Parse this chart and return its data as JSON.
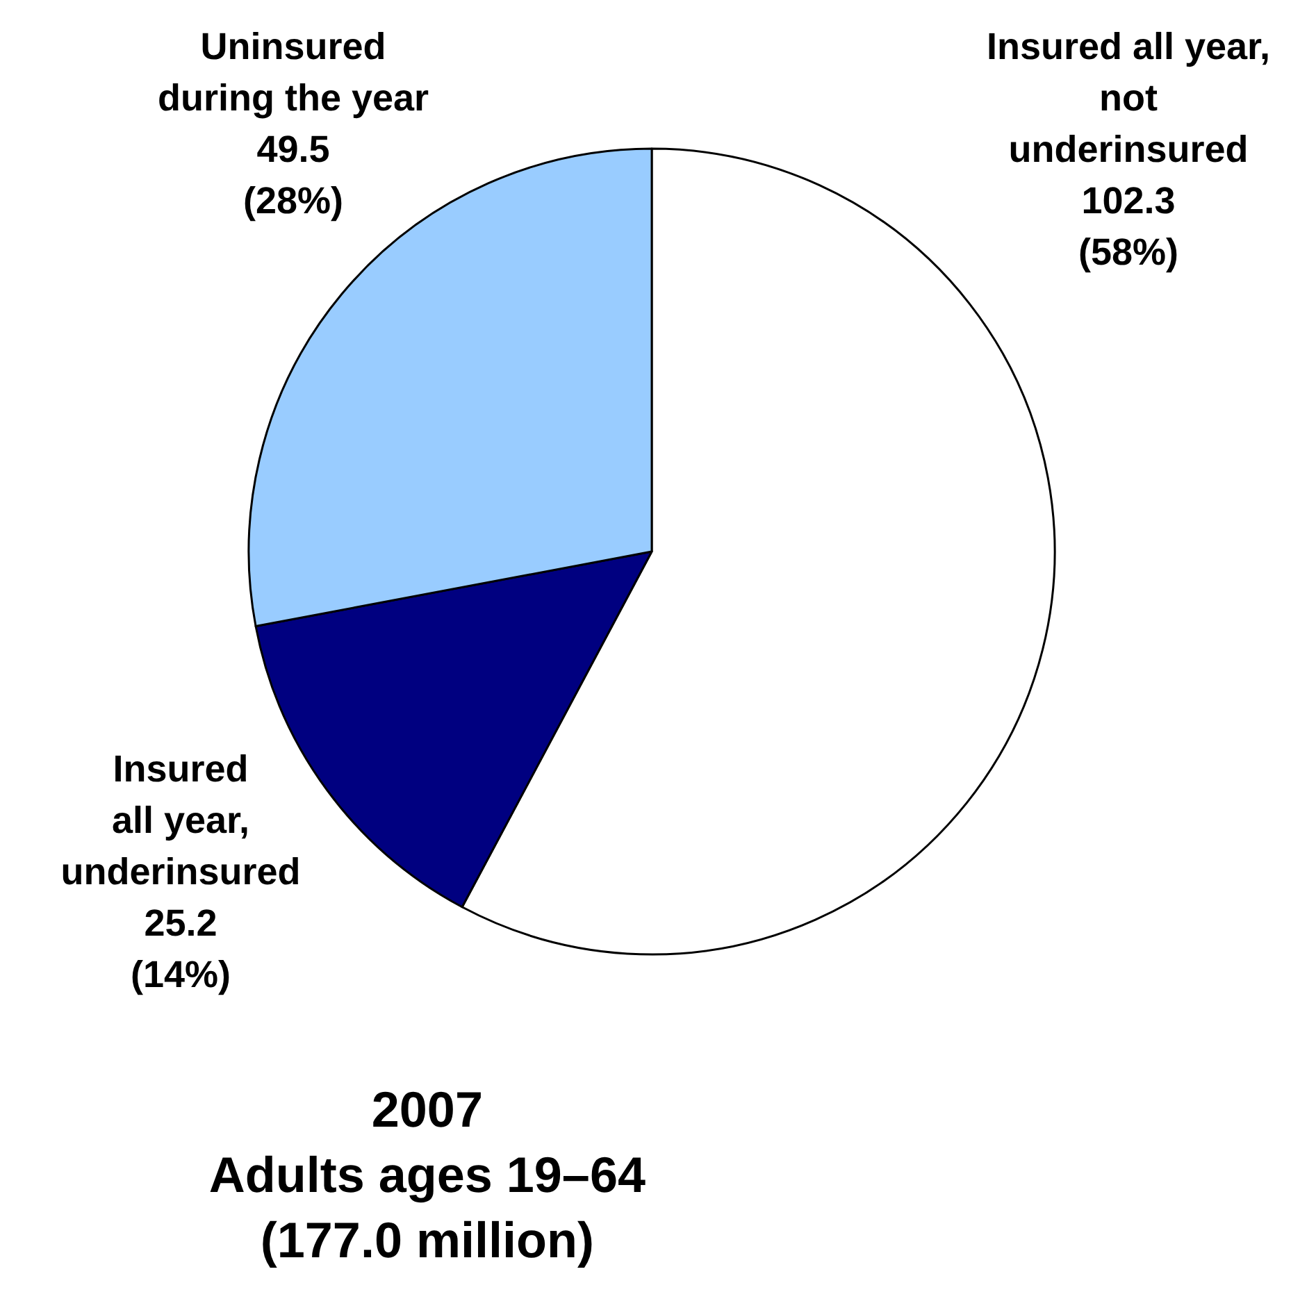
{
  "chart_data": {
    "type": "pie",
    "title": "2007",
    "subtitle": "Adults ages 19–64\n(177.0 million)",
    "categories": [
      "Insured all year,\nnot\nunderinsured",
      "Insured\nall year,\nunderinsured",
      "Uninsured\nduring the year"
    ],
    "values": [
      102.3,
      25.2,
      49.5
    ],
    "value_labels": [
      "102.3\n(58%)",
      "25.2\n(14%)",
      "49.5\n(28%)"
    ],
    "colors": [
      "#ffffff",
      "#000080",
      "#99ccff"
    ],
    "legend": false
  }
}
